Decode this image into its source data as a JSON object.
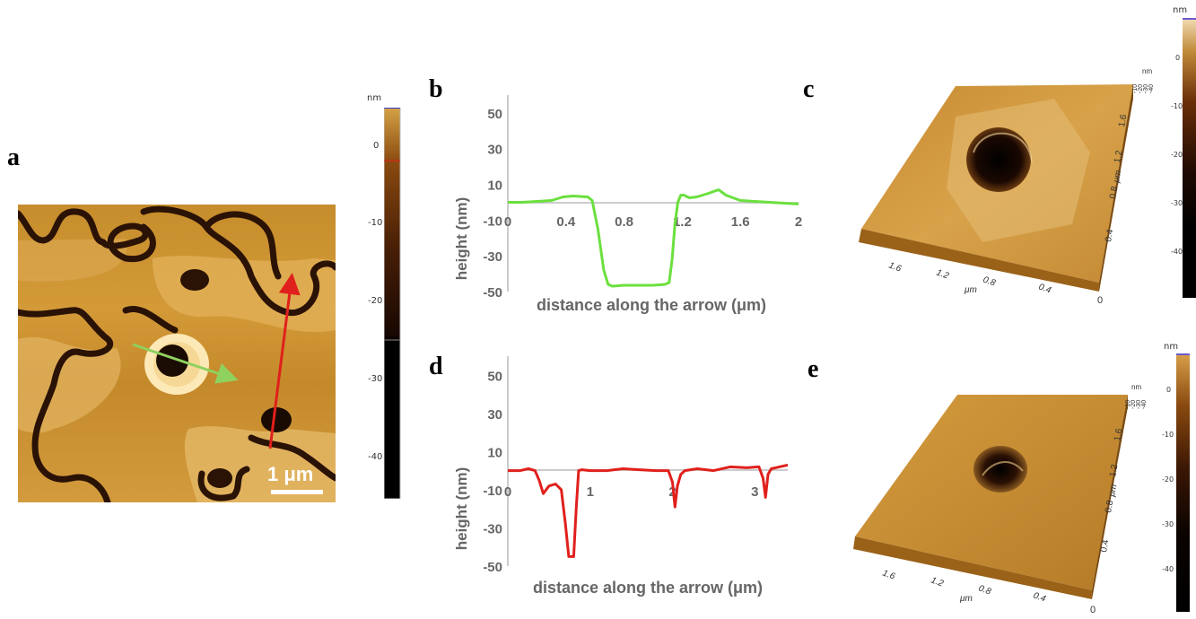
{
  "panel_labels": {
    "a": "a",
    "b": "b",
    "c": "c",
    "d": "d",
    "e": "e"
  },
  "panel_a": {
    "scale_bar": "1 μm"
  },
  "colorbar_a": {
    "unit": "nm",
    "ticks": [
      "0",
      "-10",
      "-20",
      "-30",
      "-40"
    ]
  },
  "colorbar_c": {
    "unit": "nm",
    "ticks": [
      "0",
      "-10",
      "-20",
      "-30",
      "-40"
    ]
  },
  "colorbar_e": {
    "unit": "nm",
    "ticks": [
      "0",
      "-10",
      "-20",
      "-30",
      "-40"
    ]
  },
  "view3d": {
    "x_ticks": [
      "1.6",
      "1.2",
      "0.8",
      "0.4"
    ],
    "y_ticks": [
      "1.6",
      "1.2",
      "0.8",
      "0.4"
    ],
    "origin": "0",
    "unit": "μm",
    "z_unit": "nm",
    "z_ticks": [
      "-10",
      "-20",
      "-30",
      "-40"
    ]
  },
  "chart_data": [
    {
      "type": "line",
      "xlabel": "distance along the arrow  (μm)",
      "ylabel": "height (nm)",
      "xlim": [
        0,
        2
      ],
      "ylim": [
        -50,
        60
      ],
      "x_ticks": [
        "0",
        "0.4",
        "0.8",
        "1.2",
        "1.6",
        "2"
      ],
      "y_ticks": [
        "50",
        "30",
        "10",
        "-10",
        "-30",
        "-50"
      ],
      "color": "#6be03e",
      "x": [
        0,
        0.1,
        0.2,
        0.3,
        0.38,
        0.45,
        0.55,
        0.58,
        0.62,
        0.66,
        0.69,
        0.72,
        0.8,
        0.9,
        1.0,
        1.08,
        1.11,
        1.13,
        1.15,
        1.17,
        1.19,
        1.21,
        1.25,
        1.3,
        1.38,
        1.45,
        1.5,
        1.6,
        1.7,
        1.8,
        1.9,
        2.0
      ],
      "y": [
        0,
        0,
        0.5,
        1,
        3,
        3.5,
        3,
        1,
        -15,
        -38,
        -46,
        -47,
        -46.5,
        -46.5,
        -46.5,
        -46,
        -45,
        -32,
        -12,
        0,
        4,
        4,
        2.5,
        3,
        5,
        7,
        4,
        1,
        0.5,
        0,
        -0.5,
        -1
      ]
    },
    {
      "type": "line",
      "xlabel": "distance along the arrow (μm)",
      "ylabel": "height (nm)",
      "xlim": [
        0,
        3.4
      ],
      "ylim": [
        -50,
        60
      ],
      "x_ticks": [
        "0",
        "1",
        "2",
        "3"
      ],
      "y_ticks": [
        "50",
        "30",
        "10",
        "-10",
        "-30",
        "-50"
      ],
      "color": "#e0201c",
      "x": [
        0,
        0.15,
        0.25,
        0.33,
        0.38,
        0.43,
        0.5,
        0.58,
        0.65,
        0.7,
        0.74,
        0.8,
        0.83,
        0.86,
        0.9,
        1.0,
        1.2,
        1.4,
        1.6,
        1.8,
        1.95,
        2.0,
        2.03,
        2.06,
        2.1,
        2.15,
        2.3,
        2.5,
        2.7,
        2.9,
        3.05,
        3.1,
        3.13,
        3.16,
        3.2,
        3.3,
        3.4
      ],
      "y": [
        0,
        0,
        1,
        0,
        -5,
        -12,
        -8,
        -7,
        -10,
        -28,
        -45,
        -45,
        -20,
        0,
        0.5,
        0,
        0,
        1,
        0.5,
        0,
        0,
        -6,
        -19,
        -8,
        -2,
        0,
        1,
        0,
        2,
        1.5,
        2,
        -4,
        -14,
        -2,
        1,
        2,
        3
      ]
    }
  ]
}
